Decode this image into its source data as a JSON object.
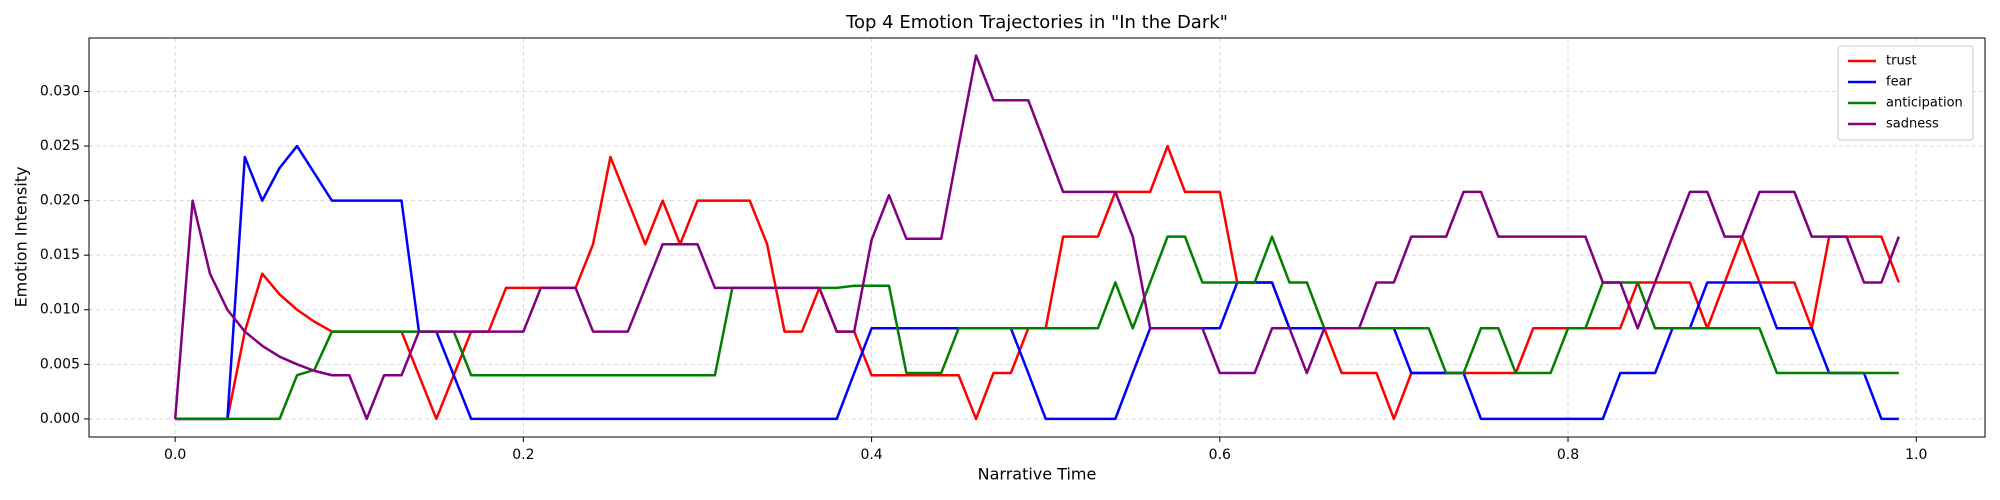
{
  "chart_data": {
    "type": "line",
    "title": "Top 4 Emotion Trajectories in \"In the Dark\"",
    "x_label": "Narrative Time",
    "y_label": "Emotion Intensity",
    "x": [
      0,
      0.01,
      0.02,
      0.03,
      0.04,
      0.05,
      0.06,
      0.07,
      0.08,
      0.09,
      0.1,
      0.11,
      0.12,
      0.13,
      0.14,
      0.15,
      0.16,
      0.17,
      0.18,
      0.19,
      0.2,
      0.21,
      0.22,
      0.23,
      0.24,
      0.25,
      0.26,
      0.27,
      0.28,
      0.29,
      0.3,
      0.31,
      0.32,
      0.33,
      0.34,
      0.35,
      0.36,
      0.37,
      0.38,
      0.39,
      0.4,
      0.41,
      0.42,
      0.43,
      0.44,
      0.45,
      0.46,
      0.47,
      0.48,
      0.49,
      0.5,
      0.51,
      0.52,
      0.53,
      0.54,
      0.55,
      0.56,
      0.57,
      0.58,
      0.59,
      0.6,
      0.61,
      0.62,
      0.63,
      0.64,
      0.65,
      0.66,
      0.67,
      0.68,
      0.69,
      0.7,
      0.71,
      0.72,
      0.73,
      0.74,
      0.75,
      0.76,
      0.77,
      0.78,
      0.79,
      0.8,
      0.81,
      0.82,
      0.83,
      0.84,
      0.85,
      0.86,
      0.87,
      0.88,
      0.89,
      0.9,
      0.91,
      0.92,
      0.93,
      0.94,
      0.95,
      0.96,
      0.97,
      0.98,
      0.99
    ],
    "series": [
      {
        "name": "trust",
        "color": "#ff0000",
        "values": [
          0,
          0,
          0,
          0,
          0.008,
          0.0133,
          0.0114,
          0.01,
          0.0089,
          0.008,
          0.008,
          0.008,
          0.008,
          0.008,
          0.004,
          0,
          0.004,
          0.008,
          0.008,
          0.012,
          0.012,
          0.012,
          0.012,
          0.012,
          0.016,
          0.024,
          0.02,
          0.016,
          0.02,
          0.016,
          0.02,
          0.02,
          0.02,
          0.02,
          0.016,
          0.008,
          0.008,
          0.012,
          0.008,
          0.008,
          0.004,
          0.004,
          0.004,
          0.004,
          0.004,
          0.004,
          0,
          0.0042,
          0.0042,
          0.0083,
          0.0083,
          0.0167,
          0.0167,
          0.0167,
          0.0208,
          0.0208,
          0.0208,
          0.025,
          0.0208,
          0.0208,
          0.0208,
          0.0125,
          0.0125,
          0.0125,
          0.0083,
          0.0083,
          0.0083,
          0.0042,
          0.0042,
          0.0042,
          0,
          0.0042,
          0.0042,
          0.0042,
          0.0042,
          0.0042,
          0.0042,
          0.0042,
          0.0083,
          0.0083,
          0.0083,
          0.0083,
          0.0083,
          0.0083,
          0.0125,
          0.0125,
          0.0125,
          0.0125,
          0.0083,
          0.0125,
          0.0167,
          0.0125,
          0.0125,
          0.0125,
          0.0083,
          0.0167,
          0.0167,
          0.0167,
          0.0167,
          0.0125
        ]
      },
      {
        "name": "fear",
        "color": "#0000ff",
        "values": [
          0,
          0,
          0,
          0,
          0.024,
          0.02,
          0.023,
          0.025,
          0.0225,
          0.02,
          0.02,
          0.02,
          0.02,
          0.02,
          0.008,
          0.008,
          0.004,
          0,
          0,
          0,
          0,
          0,
          0,
          0,
          0,
          0,
          0,
          0,
          0,
          0,
          0,
          0,
          0,
          0,
          0,
          0,
          0,
          0,
          0,
          0.0042,
          0.0083,
          0.0083,
          0.0083,
          0.0083,
          0.0083,
          0.0083,
          0.0083,
          0.0083,
          0.0083,
          0.0042,
          0,
          0,
          0,
          0,
          0,
          0.0042,
          0.0083,
          0.0083,
          0.0083,
          0.0083,
          0.0083,
          0.0125,
          0.0125,
          0.0125,
          0.0083,
          0.0083,
          0.0083,
          0.0083,
          0.0083,
          0.0083,
          0.0083,
          0.0042,
          0.0042,
          0.0042,
          0.0042,
          0,
          0,
          0,
          0,
          0,
          0,
          0,
          0,
          0.0042,
          0.0042,
          0.0042,
          0.0083,
          0.0083,
          0.0125,
          0.0125,
          0.0125,
          0.0125,
          0.0083,
          0.0083,
          0.0083,
          0.0042,
          0.0042,
          0.0042,
          0,
          0
        ]
      },
      {
        "name": "anticipation",
        "color": "#008000",
        "values": [
          0,
          0,
          0,
          0,
          0,
          0,
          0,
          0.004,
          0.0045,
          0.008,
          0.008,
          0.008,
          0.008,
          0.008,
          0.008,
          0.008,
          0.008,
          0.004,
          0.004,
          0.004,
          0.004,
          0.004,
          0.004,
          0.004,
          0.004,
          0.004,
          0.004,
          0.004,
          0.004,
          0.004,
          0.004,
          0.004,
          0.012,
          0.012,
          0.012,
          0.012,
          0.012,
          0.012,
          0.012,
          0.0122,
          0.0122,
          0.0122,
          0.0042,
          0.0042,
          0.0042,
          0.0083,
          0.0083,
          0.0083,
          0.0083,
          0.0083,
          0.0083,
          0.0083,
          0.0083,
          0.0083,
          0.0125,
          0.0083,
          0.0125,
          0.0167,
          0.0167,
          0.0125,
          0.0125,
          0.0125,
          0.0125,
          0.0167,
          0.0125,
          0.0125,
          0.0083,
          0.0083,
          0.0083,
          0.0083,
          0.0083,
          0.0083,
          0.0083,
          0.0042,
          0.0042,
          0.0083,
          0.0083,
          0.0042,
          0.0042,
          0.0042,
          0.0083,
          0.0083,
          0.0125,
          0.0125,
          0.0125,
          0.0083,
          0.0083,
          0.0083,
          0.0083,
          0.0083,
          0.0083,
          0.0083,
          0.0042,
          0.0042,
          0.0042,
          0.0042,
          0.0042,
          0.0042,
          0.0042,
          0.0042
        ]
      },
      {
        "name": "sadness",
        "color": "#800080",
        "values": [
          0,
          0.02,
          0.0133,
          0.01,
          0.008,
          0.0067,
          0.0057,
          0.005,
          0.0044,
          0.004,
          0.004,
          0,
          0.004,
          0.004,
          0.008,
          0.008,
          0.008,
          0.008,
          0.008,
          0.008,
          0.008,
          0.012,
          0.012,
          0.012,
          0.008,
          0.008,
          0.008,
          0.012,
          0.016,
          0.016,
          0.016,
          0.012,
          0.012,
          0.012,
          0.012,
          0.012,
          0.012,
          0.012,
          0.008,
          0.008,
          0.0164,
          0.0205,
          0.0165,
          0.0165,
          0.0165,
          0.025,
          0.0333,
          0.0292,
          0.0292,
          0.0292,
          0.025,
          0.0208,
          0.0208,
          0.0208,
          0.0208,
          0.0167,
          0.0083,
          0.0083,
          0.0083,
          0.0083,
          0.0042,
          0.0042,
          0.0042,
          0.0083,
          0.0083,
          0.0042,
          0.0083,
          0.0083,
          0.0083,
          0.0125,
          0.0125,
          0.0167,
          0.0167,
          0.0167,
          0.0208,
          0.0208,
          0.0167,
          0.0167,
          0.0167,
          0.0167,
          0.0167,
          0.0167,
          0.0125,
          0.0125,
          0.0083,
          0.0125,
          0.0167,
          0.0208,
          0.0208,
          0.0167,
          0.0167,
          0.0208,
          0.0208,
          0.0208,
          0.0167,
          0.0167,
          0.0167,
          0.0125,
          0.0125,
          0.0167
        ]
      }
    ],
    "xlim": [
      -0.0495,
      1.0395
    ],
    "ylim": [
      -0.00166,
      0.0349
    ],
    "xticks": [
      {
        "value": 0,
        "label": "0.0"
      },
      0.2,
      0.4,
      0.6,
      0.8,
      {
        "value": 1,
        "label": "1.0"
      }
    ],
    "yticks": [
      {
        "value": 0,
        "label": "0.000"
      },
      {
        "value": 0.005,
        "label": "0.005"
      },
      {
        "value": 0.01,
        "label": "0.010"
      },
      {
        "value": 0.015,
        "label": "0.015"
      },
      {
        "value": 0.02,
        "label": "0.020"
      },
      {
        "value": 0.025,
        "label": "0.025"
      },
      {
        "value": 0.03,
        "label": "0.030"
      }
    ],
    "grid": true,
    "legend": "upper right"
  }
}
